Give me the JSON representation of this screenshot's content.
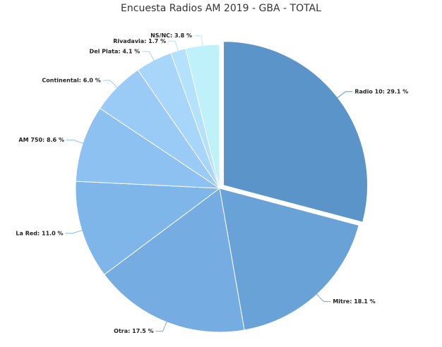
{
  "chart_data": {
    "type": "pie",
    "title": "Encuesta Radios AM 2019 - GBA - TOTAL",
    "values": [
      29.1,
      18.1,
      17.5,
      11.0,
      8.6,
      6.0,
      4.1,
      1.7,
      3.8
    ],
    "value_labels": [
      "Radio 10: 29.1 %",
      "Mitre: 18.1 %",
      "Otra: 17.5 %",
      "La Red: 11.0 %",
      "AM 750: 8.6 %",
      "Continental: 6.0 %",
      "Del Plata: 4.1 %",
      "Rivadavia: 1.7 %",
      "NS/NC: 3.8 %"
    ],
    "colors": [
      "#5b94c8",
      "#69a2d7",
      "#75ade2",
      "#7fb6ea",
      "#8cc1f2",
      "#9acbf6",
      "#a8d6fa",
      "#b4e1fc",
      "#bff1fb"
    ]
  }
}
